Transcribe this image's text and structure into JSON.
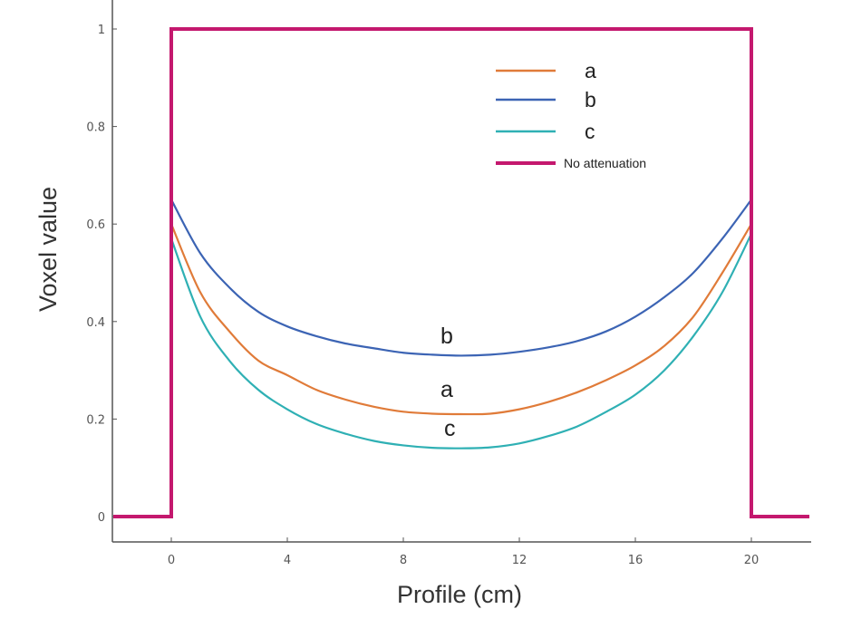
{
  "chart_data": {
    "type": "line",
    "xlabel": "Profile (cm)",
    "ylabel": "Voxel value",
    "xlim": [
      -2,
      22
    ],
    "ylim": [
      -0.05,
      1.08
    ],
    "x_ticks": [
      0,
      4,
      8,
      12,
      16,
      20
    ],
    "y_ticks": [
      0,
      0.2,
      0.4,
      0.6,
      0.8,
      1
    ],
    "x_tick_labels": [
      "0",
      "4",
      "8",
      "12",
      "16",
      "20"
    ],
    "y_tick_labels": [
      "0",
      "0.2",
      "0.4",
      "0.6",
      "0.8",
      "1"
    ],
    "grid": false,
    "legend_position": "top-right",
    "series": [
      {
        "name": "a",
        "color": "#e07b39",
        "x": [
          0,
          1,
          2,
          3,
          4,
          5,
          6,
          7,
          8,
          9,
          10,
          11,
          12,
          13,
          14,
          15,
          16,
          17,
          18,
          19,
          20
        ],
        "y": [
          0.6,
          0.46,
          0.38,
          0.32,
          0.29,
          0.26,
          0.24,
          0.225,
          0.215,
          0.211,
          0.21,
          0.211,
          0.22,
          0.235,
          0.255,
          0.28,
          0.31,
          0.35,
          0.41,
          0.5,
          0.6
        ]
      },
      {
        "name": "b",
        "color": "#3c64b4",
        "x": [
          0,
          1,
          2,
          3,
          4,
          5,
          6,
          7,
          8,
          9,
          10,
          11,
          12,
          13,
          14,
          15,
          16,
          17,
          18,
          19,
          20
        ],
        "y": [
          0.65,
          0.54,
          0.47,
          0.42,
          0.39,
          0.37,
          0.355,
          0.345,
          0.336,
          0.332,
          0.33,
          0.332,
          0.338,
          0.347,
          0.36,
          0.38,
          0.41,
          0.45,
          0.5,
          0.57,
          0.65
        ]
      },
      {
        "name": "c",
        "color": "#2fb0b4",
        "x": [
          0,
          1,
          2,
          3,
          4,
          5,
          6,
          7,
          8,
          9,
          10,
          11,
          12,
          13,
          14,
          15,
          16,
          17,
          18,
          19,
          20
        ],
        "y": [
          0.57,
          0.41,
          0.32,
          0.26,
          0.22,
          0.19,
          0.17,
          0.155,
          0.146,
          0.141,
          0.14,
          0.142,
          0.15,
          0.165,
          0.185,
          0.215,
          0.25,
          0.3,
          0.37,
          0.46,
          0.58
        ]
      },
      {
        "name": "No attenuation",
        "color": "#c4186e",
        "x": [
          -2,
          0,
          0,
          20,
          20,
          22
        ],
        "y": [
          0,
          0,
          1,
          1,
          0,
          0
        ]
      }
    ],
    "annotations": [
      {
        "text": "b",
        "x": 9.5,
        "y": 0.355
      },
      {
        "text": "a",
        "x": 9.5,
        "y": 0.245
      },
      {
        "text": "c",
        "x": 9.6,
        "y": 0.165
      }
    ]
  },
  "legend": [
    {
      "label": "a",
      "color": "#e07b39"
    },
    {
      "label": "b",
      "color": "#3c64b4"
    },
    {
      "label": "c",
      "color": "#2fb0b4"
    },
    {
      "label": "No attenuation",
      "color": "#c4186e"
    }
  ]
}
